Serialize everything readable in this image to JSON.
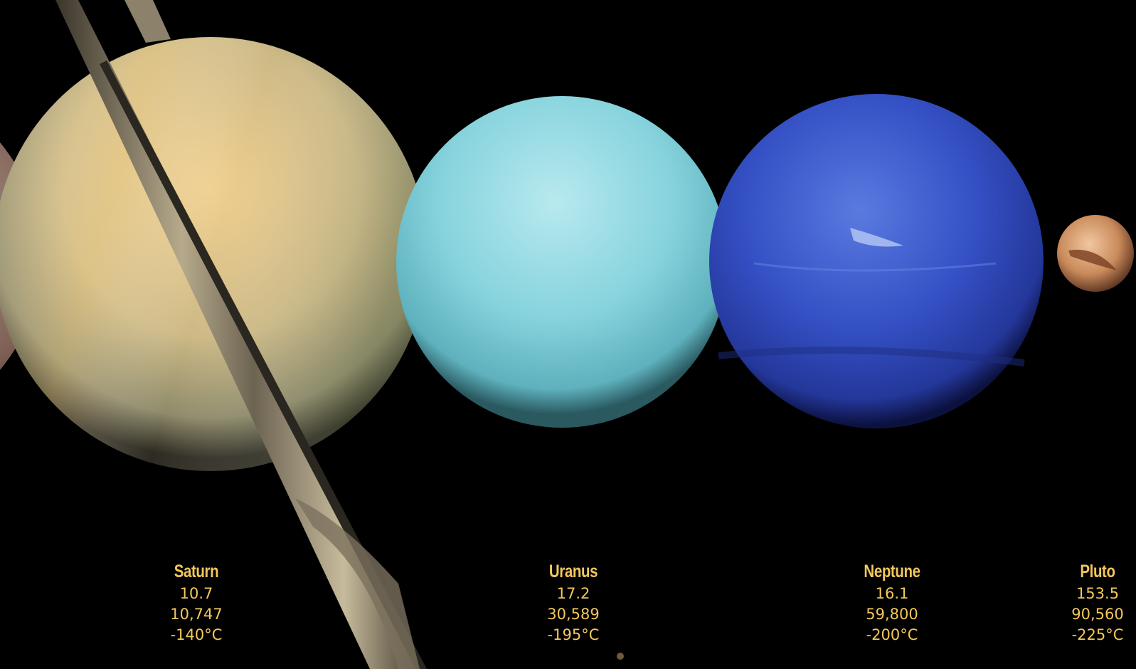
{
  "colors": {
    "background": "#000000",
    "label_text": "#f2c75c",
    "saturn": "#d9c08a",
    "uranus": "#8fd8e0",
    "neptune": "#3550c0",
    "pluto": "#c98a5a"
  },
  "planets": [
    {
      "name": "Saturn",
      "value1": "10.7",
      "value2": "10,747",
      "temp": "-140°C"
    },
    {
      "name": "Uranus",
      "value1": "17.2",
      "value2": "30,589",
      "temp": "-195°C"
    },
    {
      "name": "Neptune",
      "value1": "16.1",
      "value2": "59,800",
      "temp": "-200°C"
    },
    {
      "name": "Pluto",
      "value1": "153.5",
      "value2": "90,560",
      "temp": "-225°C"
    }
  ]
}
